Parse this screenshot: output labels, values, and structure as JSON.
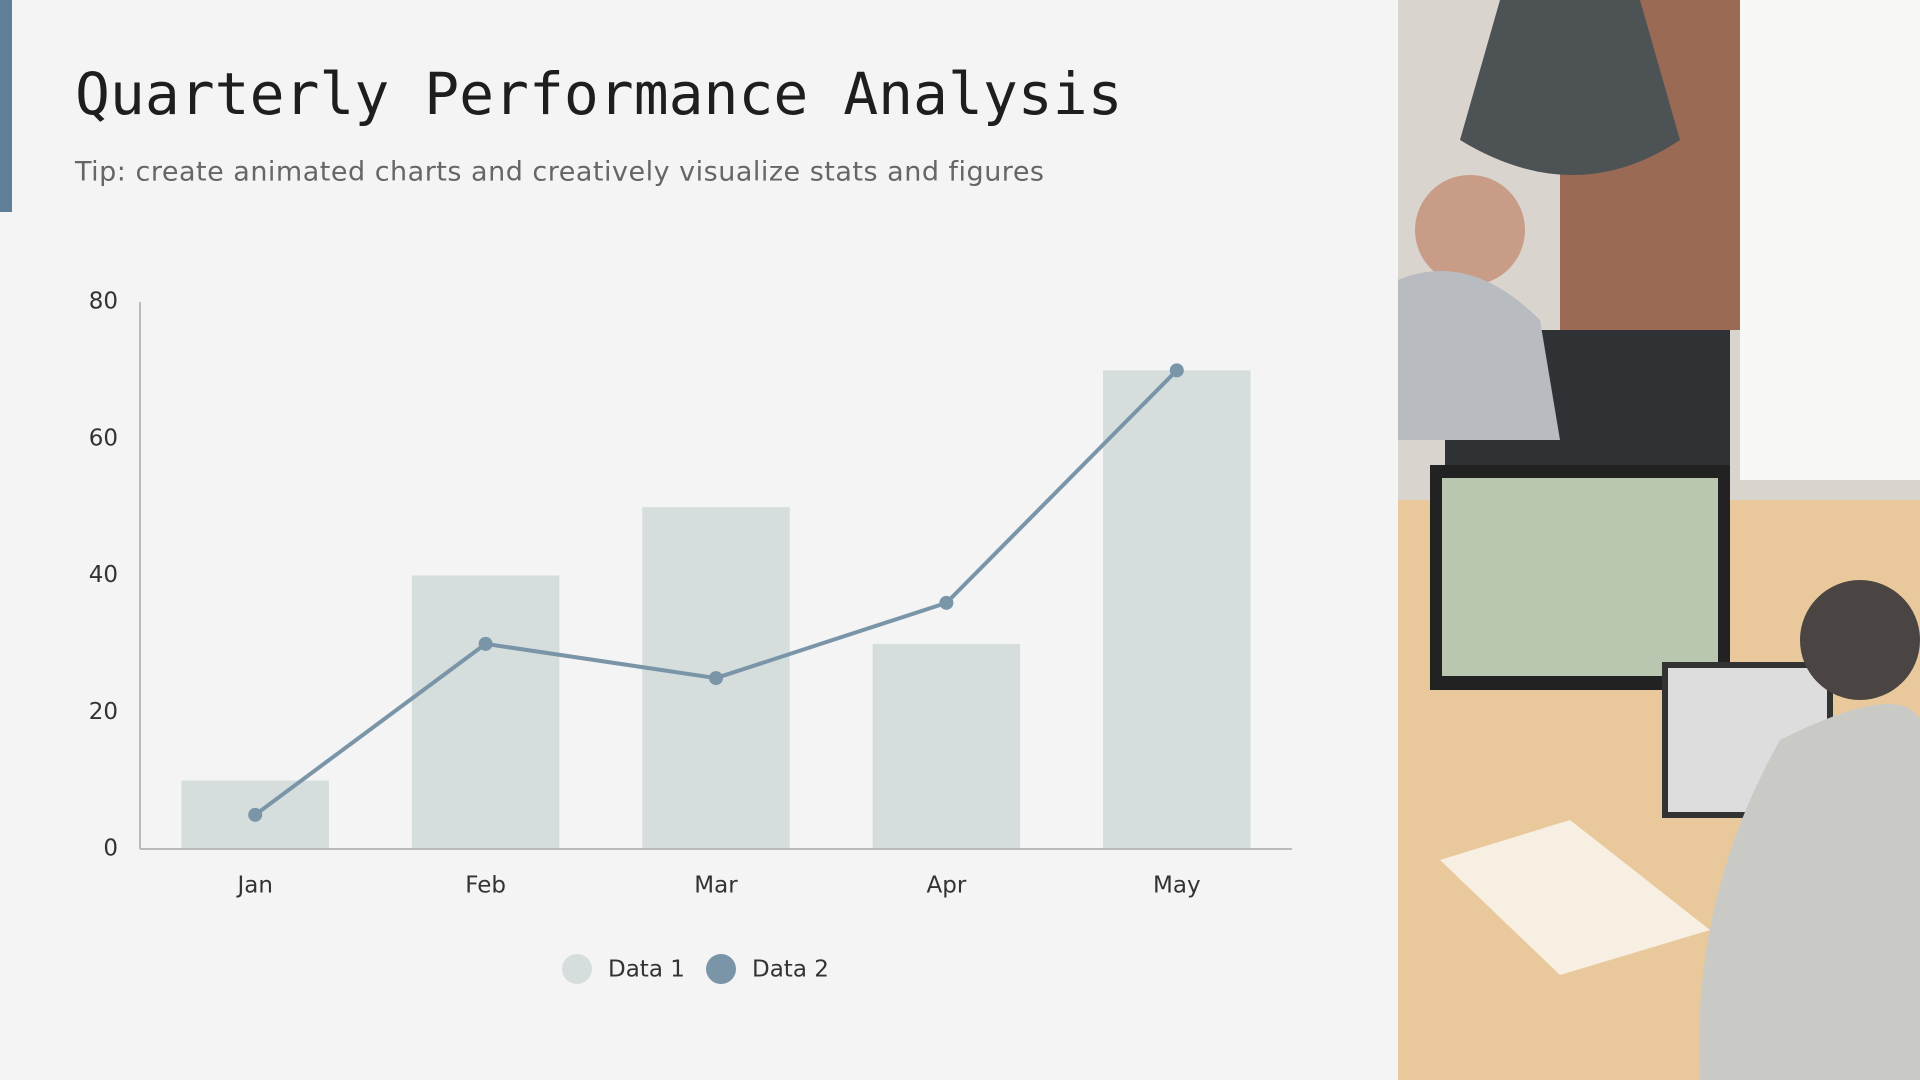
{
  "chart_data": {
    "type": "bar",
    "title": "Quarterly Performance Analysis",
    "subtitle": "Tip: create animated charts and creatively visualize stats and figures",
    "categories": [
      "Jan",
      "Feb",
      "Mar",
      "Apr",
      "May"
    ],
    "series": [
      {
        "name": "Data 1",
        "type": "bar",
        "color": "#d5dedc",
        "values": [
          10,
          40,
          50,
          30,
          70
        ]
      },
      {
        "name": "Data 2",
        "type": "line",
        "color": "#7a95a8",
        "values": [
          5,
          30,
          25,
          36,
          70
        ]
      }
    ],
    "ylim": [
      0,
      80
    ],
    "yticks": [
      0,
      20,
      40,
      60,
      80
    ],
    "grid": false,
    "legend": "bottom"
  }
}
